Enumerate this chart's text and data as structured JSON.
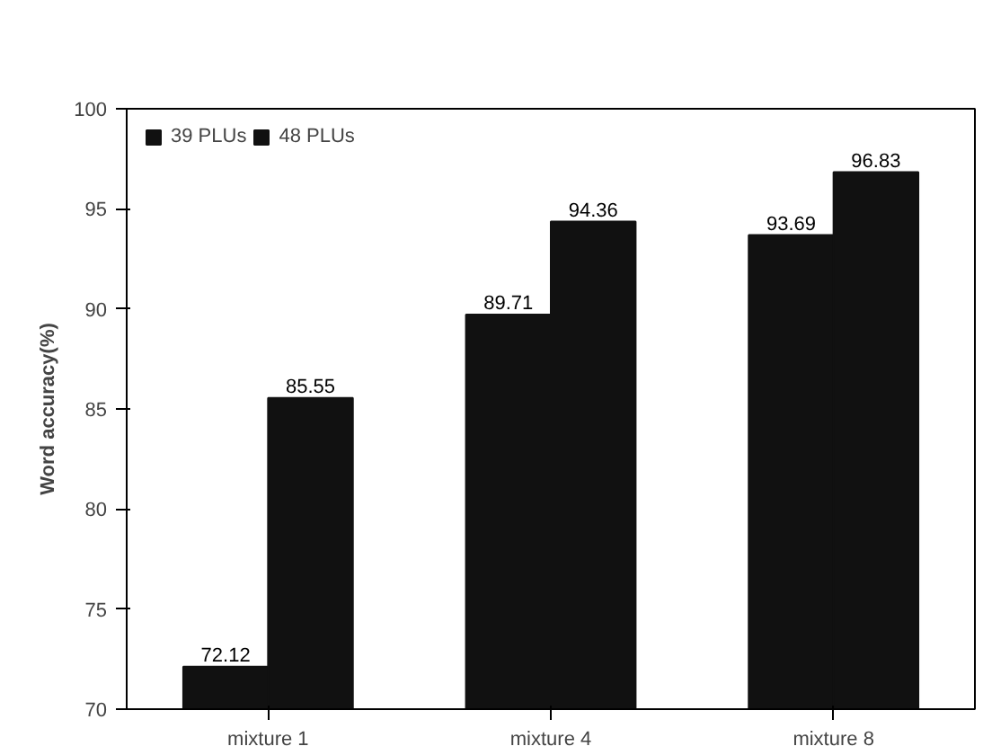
{
  "chart_data": {
    "type": "bar",
    "ylabel": "Word accuracy(%)",
    "categories": [
      "mixture 1",
      "mixture 4",
      "mixture 8"
    ],
    "series": [
      {
        "name": "39 PLUs",
        "color": "#111111",
        "values": [
          72.12,
          89.71,
          93.69
        ]
      },
      {
        "name": "48 PLUs",
        "color": "#111111",
        "values": [
          85.55,
          94.36,
          96.83
        ]
      }
    ],
    "ylim": [
      70,
      100
    ],
    "yticks": [
      70,
      75,
      80,
      85,
      90,
      95,
      100
    ],
    "data_labels": true,
    "legend": "top",
    "grid": false
  }
}
